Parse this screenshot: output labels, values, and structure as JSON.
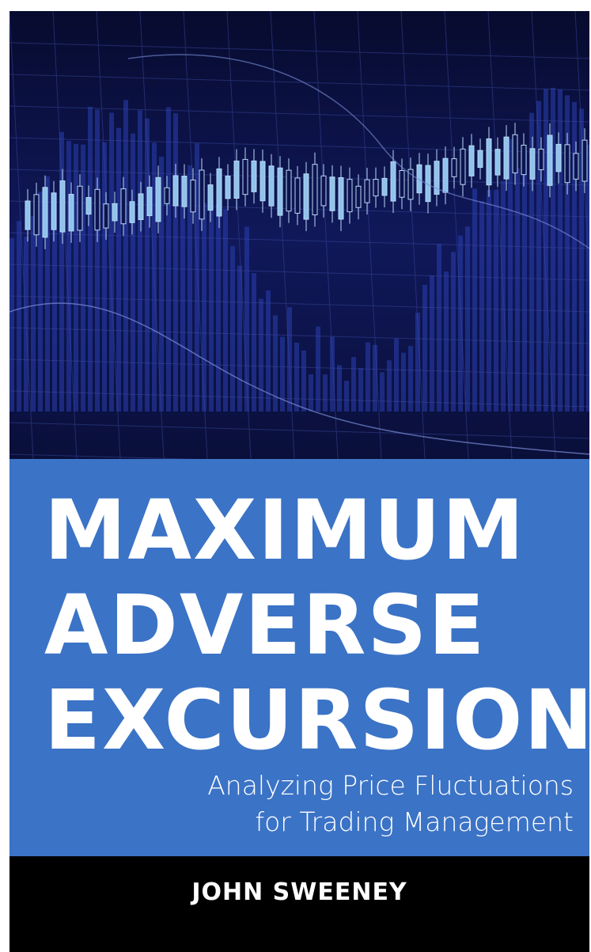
{
  "cover": {
    "title_lines": [
      "MAXIMUM",
      "ADVERSE",
      "EXCURSION"
    ],
    "subtitle_lines": [
      "Analyzing Price Fluctuations",
      "for Trading Management"
    ],
    "author": "JOHN SWEENEY"
  }
}
